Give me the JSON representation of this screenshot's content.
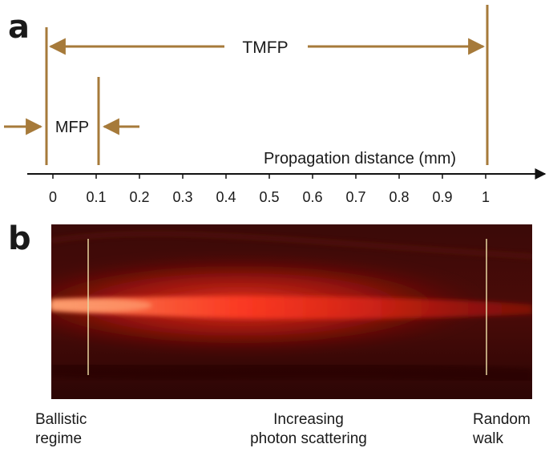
{
  "panel_a": {
    "label": "a",
    "tmfp_label": "TMFP",
    "mfp_label": "MFP",
    "axis_title": "Propagation distance (mm)",
    "ticks": [
      "0",
      "0.1",
      "0.2",
      "0.3",
      "0.4",
      "0.5",
      "0.6",
      "0.7",
      "0.8",
      "0.9",
      "1"
    ],
    "tmfp_mm": 1,
    "mfp_mm": 0.1,
    "bracket_color": "#a67a3a",
    "axis_color": "#111111"
  },
  "panel_b": {
    "label": "b",
    "beam_color": "#ff2a1a",
    "background_color": "#3a0807",
    "captions": {
      "left_line1": "Ballistic",
      "left_line2": "regime",
      "mid_line1": "Increasing",
      "mid_line2": "photon scattering",
      "right_line1": "Random",
      "right_line2": "walk"
    }
  }
}
